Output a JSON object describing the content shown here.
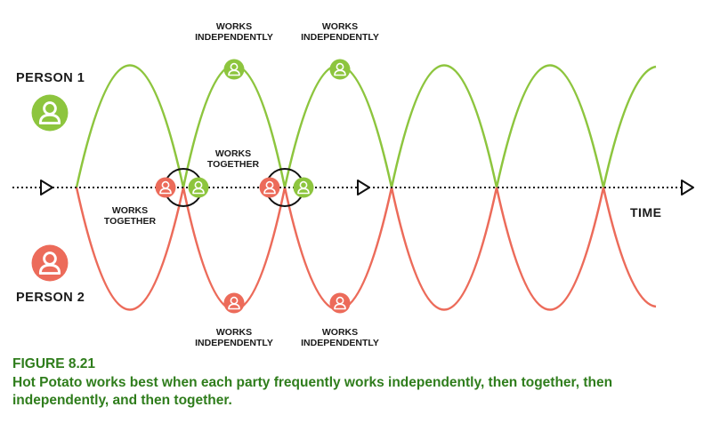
{
  "labels": {
    "person1": "PERSON 1",
    "person2": "PERSON 2",
    "time": "TIME",
    "works": "WORKS",
    "independently": "INDEPENDENTLY",
    "together": "TOGETHER"
  },
  "colors": {
    "person1": "#8dc53e",
    "person2": "#ec6b5a",
    "axis": "#111111",
    "caption": "#2f7d1c"
  },
  "icons": [
    "person-icon"
  ],
  "caption": {
    "figure": "FIGURE 8.21",
    "text": "Hot Potato works best when each party frequently works independently, then together, then independently, and then together."
  }
}
